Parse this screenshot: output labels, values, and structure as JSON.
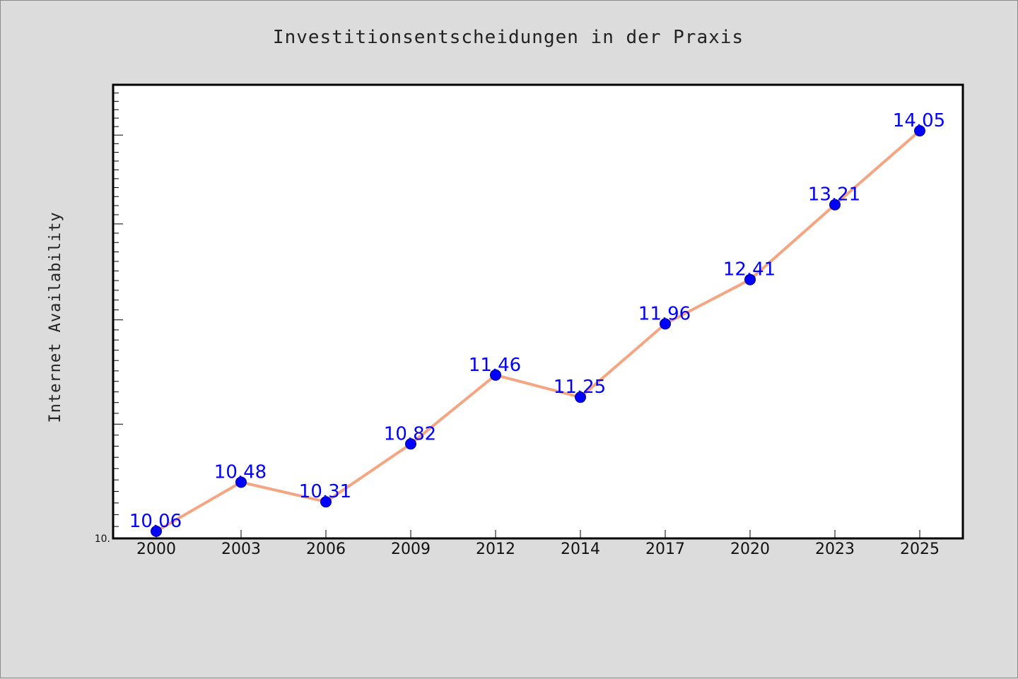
{
  "chart_data": {
    "type": "line",
    "title": "Investitionsentscheidungen in der Praxis",
    "xlabel": "",
    "ylabel": "Internet Availability",
    "categories": [
      "2000",
      "2003",
      "2006",
      "2009",
      "2012",
      "2014",
      "2017",
      "2020",
      "2023",
      "2025"
    ],
    "series": [
      {
        "values": [
          10.06,
          10.48,
          10.31,
          10.82,
          11.46,
          11.25,
          11.96,
          12.41,
          13.21,
          14.05
        ],
        "data_labels": [
          "10.06",
          "10.48",
          "10.31",
          "10.82",
          "11.46",
          "11.25",
          "11.96",
          "12.41",
          "13.21",
          "14.05"
        ]
      }
    ],
    "ylim": [
      10.0,
      14.6
    ],
    "y_scale": "log",
    "y_tick_labels": [
      "10."
    ],
    "grid": false,
    "line_color": "#f4a582",
    "marker_color": "#0000ff",
    "label_color": "#0000ff"
  }
}
